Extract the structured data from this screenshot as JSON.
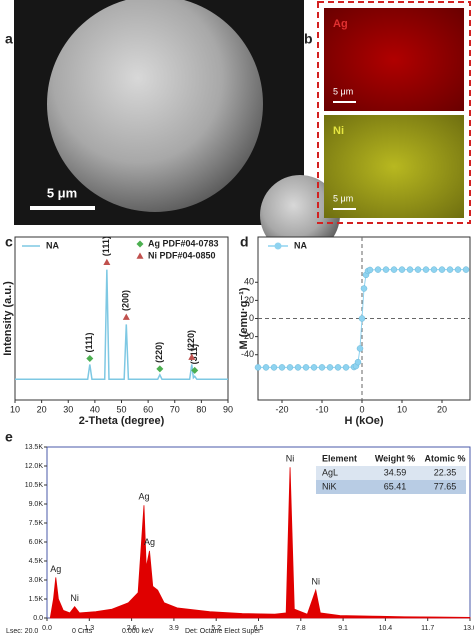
{
  "panels": {
    "a": {
      "label": "a",
      "scale_bar": "5 μm"
    },
    "b": {
      "label": "b",
      "maps": [
        {
          "element": "Ag",
          "scale_bar": "5 μm"
        },
        {
          "element": "Ni",
          "scale_bar": "5 μm"
        }
      ]
    }
  },
  "chart_data": [
    {
      "type": "line",
      "panel_label": "c",
      "x_label": "2-Theta (degree)",
      "y_label": "Intensity (a.u.)",
      "x": [
        10,
        20,
        30,
        37.3,
        38.1,
        38.9,
        43.7,
        44.5,
        45.3,
        51,
        51.8,
        52.6,
        63.6,
        64.4,
        65.2,
        75.6,
        76.4,
        77,
        77.5,
        78.3,
        90
      ],
      "series": [
        {
          "name": "NA",
          "color": "#7ec8e3",
          "values": [
            14,
            14,
            14,
            14,
            24,
            14,
            14,
            88,
            14,
            14,
            51,
            14,
            14,
            17,
            14,
            14,
            24,
            15,
            16,
            14,
            14
          ]
        }
      ],
      "xlim": [
        10,
        90
      ],
      "ylim": [
        0,
        110
      ],
      "xticks": [
        10,
        20,
        30,
        40,
        50,
        60,
        70,
        80,
        90
      ],
      "markers": [
        {
          "name": "Ag PDF#04-0783",
          "color": "#4caf50",
          "shape": "diamond",
          "peaks": [
            {
              "label": "(111)",
              "x": 38.1,
              "y": 28
            },
            {
              "label": "(220)",
              "x": 64.4,
              "y": 21
            },
            {
              "label": "(311)",
              "x": 77.5,
              "y": 20
            }
          ]
        },
        {
          "name": "Ni PDF#04-0850",
          "color": "#c0504d",
          "shape": "triangle",
          "peaks": [
            {
              "label": "(111)",
              "x": 44.5,
              "y": 93
            },
            {
              "label": "(200)",
              "x": 51.8,
              "y": 56
            },
            {
              "label": "(220)",
              "x": 76.4,
              "y": 29
            }
          ]
        }
      ]
    },
    {
      "type": "scatter",
      "panel_label": "d",
      "x_label": "H (kOe)",
      "y_label": "M (emu·g⁻¹)",
      "x": [
        -26,
        -24,
        -22,
        -20,
        -18,
        -16,
        -14,
        -12,
        -10,
        -8,
        -6,
        -4,
        -2,
        -1.5,
        -1,
        -0.5,
        0,
        0.5,
        1,
        1.5,
        2,
        4,
        6,
        8,
        10,
        12,
        14,
        16,
        18,
        20,
        22,
        24,
        26
      ],
      "series": [
        {
          "name": "NA",
          "color": "#8fd3f0",
          "values": [
            -54,
            -54,
            -54,
            -54,
            -54,
            -54,
            -54,
            -54,
            -54,
            -54,
            -54,
            -54,
            -53.6,
            -52.5,
            -48.2,
            -33.1,
            0,
            33.1,
            48.2,
            52.5,
            53.6,
            54,
            54,
            54,
            54,
            54,
            54,
            54,
            54,
            54,
            54,
            54,
            54
          ]
        }
      ],
      "xlim": [
        -26,
        27
      ],
      "ylim": [
        -90,
        90
      ],
      "xticks": [
        -20,
        -10,
        0,
        10,
        20
      ],
      "yticks": [
        -40,
        -20,
        0,
        20,
        40
      ],
      "zero_lines": true
    },
    {
      "type": "area",
      "panel_label": "e",
      "x": [
        0.1,
        0.2,
        0.27,
        0.35,
        0.5,
        0.7,
        0.85,
        1.0,
        1.5,
        2.0,
        2.5,
        2.8,
        2.98,
        3.05,
        3.15,
        3.25,
        3.4,
        3.6,
        4.0,
        5.0,
        6.0,
        7.0,
        7.35,
        7.47,
        7.6,
        8.0,
        8.26,
        8.4,
        9.0,
        10.0,
        11.0,
        12.0,
        13.0
      ],
      "series": [
        {
          "color": "#e00000",
          "values": [
            0,
            1500,
            3200,
            1500,
            600,
            400,
            900,
            400,
            500,
            700,
            1200,
            2000,
            8900,
            4000,
            5300,
            2500,
            2200,
            1200,
            800,
            500,
            350,
            300,
            400,
            11900,
            700,
            300,
            2200,
            400,
            200,
            150,
            100,
            80,
            50
          ]
        }
      ],
      "xlim": [
        0,
        13
      ],
      "ylim": [
        0,
        13500
      ],
      "xticks": [
        {
          "value": 0,
          "label": "0.0"
        },
        1.3,
        2.6,
        3.9,
        5.2,
        6.5,
        7.8,
        9.1,
        10.4,
        11.7,
        {
          "value": 13,
          "label": "13.0"
        }
      ],
      "yticks": [
        {
          "value": 0,
          "label": "0.0"
        },
        {
          "value": 1500,
          "label": "1.5K"
        },
        {
          "value": 3000,
          "label": "3.0K"
        },
        {
          "value": 4500,
          "label": "4.5K"
        },
        {
          "value": 6000,
          "label": "6.0K"
        },
        {
          "value": 7500,
          "label": "7.5K"
        },
        {
          "value": 9000,
          "label": "9.0K"
        },
        {
          "value": 10500,
          "label": "10.5K"
        },
        {
          "value": 12000,
          "label": "12.0K"
        },
        {
          "value": 13500,
          "label": "13.5K"
        }
      ],
      "annotations": [
        {
          "label": "Ag",
          "x": 0.27,
          "y": 3200
        },
        {
          "label": "Ni",
          "x": 0.85,
          "y": 900
        },
        {
          "label": "Ag",
          "x": 2.98,
          "y": 8900
        },
        {
          "label": "Ag",
          "x": 3.15,
          "y": 5300
        },
        {
          "label": "Ni",
          "x": 7.47,
          "y": 11900
        },
        {
          "label": "Ni",
          "x": 8.26,
          "y": 2200
        }
      ],
      "table": {
        "header": [
          "Element",
          "Weight %",
          "Atomic %"
        ],
        "rows": [
          [
            "AgL",
            "34.59",
            "22.35"
          ],
          [
            "NiK",
            "65.41",
            "77.65"
          ]
        ]
      },
      "footer": [
        "Lsec: 20.0",
        "0 Cnts",
        "0.000 keV",
        "Det: Octane Elect Super"
      ]
    }
  ]
}
